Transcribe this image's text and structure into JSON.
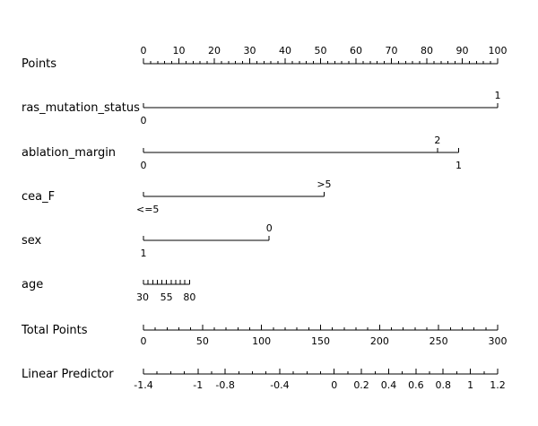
{
  "chart_data": {
    "type": "nomogram",
    "title": "",
    "colors": {
      "line": "#000000",
      "text": "#000000",
      "background": "#ffffff"
    },
    "rows": [
      {
        "label": "Points",
        "kind": "scale",
        "points_range": [
          0,
          100
        ],
        "major_ticks": [
          0,
          10,
          20,
          30,
          40,
          50,
          60,
          70,
          80,
          90,
          100
        ],
        "minor_step": 2,
        "labels_above": true
      },
      {
        "label": "ras_mutation_status",
        "kind": "variable",
        "levels": [
          {
            "label": "0",
            "points": 0,
            "position": "below"
          },
          {
            "label": "1",
            "points": 100,
            "position": "above"
          }
        ]
      },
      {
        "label": "ablation_margin",
        "kind": "variable",
        "levels": [
          {
            "label": "0",
            "points": 0,
            "position": "below"
          },
          {
            "label": "2",
            "points": 83,
            "position": "above"
          },
          {
            "label": "1",
            "points": 89,
            "position": "below"
          }
        ]
      },
      {
        "label": "cea_F",
        "kind": "variable",
        "levels": [
          {
            "label": "<=5",
            "points": 0,
            "position": "below"
          },
          {
            "label": ">5",
            "points": 51,
            "position": "above"
          }
        ]
      },
      {
        "label": "sex",
        "kind": "variable",
        "levels": [
          {
            "label": "1",
            "points": 0,
            "position": "below"
          },
          {
            "label": "0",
            "points": 35.5,
            "position": "above"
          }
        ]
      },
      {
        "label": "age",
        "kind": "variable",
        "levels": [
          {
            "label": "30",
            "points": 0,
            "position": "below"
          },
          {
            "label": "55",
            "points": 6.5,
            "position": "below"
          },
          {
            "label": "80",
            "points": 13,
            "position": "below"
          }
        ],
        "minor_ticks": 11
      },
      {
        "label": "Total Points",
        "kind": "scale",
        "value_range": [
          0,
          300
        ],
        "major_ticks": [
          0,
          50,
          100,
          150,
          200,
          250,
          300
        ],
        "minor_step": 10
      },
      {
        "label": "Linear Predictor",
        "kind": "scale",
        "value_range": [
          -1.4,
          1.2
        ],
        "major_ticks": [
          -1.4,
          -1,
          -0.8,
          -0.4,
          0,
          0.2,
          0.4,
          0.6,
          0.8,
          1,
          1.2
        ],
        "minor_step": 0.1
      }
    ]
  }
}
